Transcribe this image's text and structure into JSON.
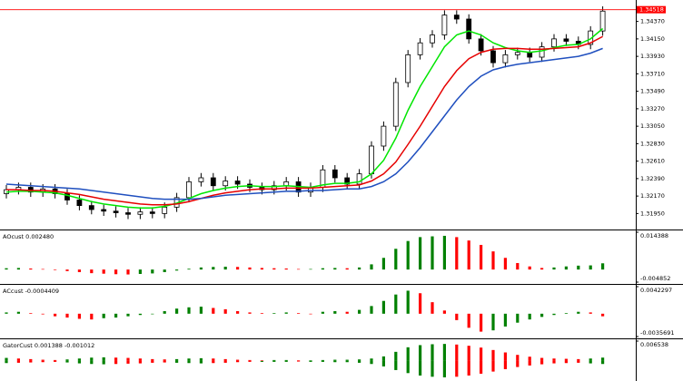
{
  "chart_data": [
    {
      "type": "candlestick",
      "open": [
        1.322,
        1.3225,
        1.3228,
        1.3222,
        1.3226,
        1.322,
        1.3212,
        1.3205,
        1.32,
        1.3198,
        1.3196,
        1.3194,
        1.3197,
        1.3195,
        1.3203,
        1.3215,
        1.3235,
        1.324,
        1.323,
        1.3236,
        1.3232,
        1.3228,
        1.3225,
        1.323,
        1.3235,
        1.3222,
        1.3228,
        1.325,
        1.324,
        1.3232,
        1.3245,
        1.328,
        1.3305,
        1.336,
        1.3395,
        1.341,
        1.342,
        1.3445,
        1.344,
        1.3415,
        1.34,
        1.3385,
        1.3395,
        1.3398,
        1.3392,
        1.3405,
        1.3415,
        1.3412,
        1.3408,
        1.3425
      ],
      "high": [
        1.3231,
        1.3234,
        1.3234,
        1.3232,
        1.3232,
        1.3226,
        1.3218,
        1.3211,
        1.3206,
        1.3204,
        1.3202,
        1.3203,
        1.3203,
        1.3209,
        1.3221,
        1.3241,
        1.3246,
        1.3246,
        1.3242,
        1.3242,
        1.3238,
        1.3234,
        1.3236,
        1.3241,
        1.3241,
        1.3234,
        1.3256,
        1.3256,
        1.3246,
        1.3251,
        1.3286,
        1.3311,
        1.3366,
        1.3401,
        1.3416,
        1.3426,
        1.3451,
        1.3451,
        1.3446,
        1.3421,
        1.3406,
        1.3401,
        1.3404,
        1.3404,
        1.3411,
        1.3421,
        1.3421,
        1.3418,
        1.3431,
        1.3456
      ],
      "low": [
        1.3214,
        1.3219,
        1.3216,
        1.3216,
        1.3214,
        1.3206,
        1.3199,
        1.3194,
        1.3192,
        1.319,
        1.3188,
        1.3188,
        1.3189,
        1.3189,
        1.3197,
        1.3209,
        1.3229,
        1.3224,
        1.3224,
        1.3226,
        1.3222,
        1.3219,
        1.3219,
        1.3224,
        1.3216,
        1.3216,
        1.3222,
        1.3234,
        1.3226,
        1.3226,
        1.3239,
        1.3274,
        1.3299,
        1.3354,
        1.3389,
        1.3404,
        1.3414,
        1.3434,
        1.3409,
        1.3394,
        1.3379,
        1.3379,
        1.3389,
        1.3386,
        1.3386,
        1.3399,
        1.3406,
        1.3402,
        1.3402,
        1.3419
      ],
      "close": [
        1.3225,
        1.3228,
        1.3222,
        1.3226,
        1.322,
        1.3212,
        1.3205,
        1.32,
        1.3198,
        1.3196,
        1.3194,
        1.3197,
        1.3195,
        1.3203,
        1.3215,
        1.3235,
        1.324,
        1.323,
        1.3236,
        1.3232,
        1.3228,
        1.3225,
        1.323,
        1.3235,
        1.3222,
        1.3228,
        1.325,
        1.324,
        1.3232,
        1.3245,
        1.328,
        1.3305,
        1.336,
        1.3395,
        1.341,
        1.342,
        1.3445,
        1.344,
        1.3415,
        1.34,
        1.3385,
        1.3395,
        1.3398,
        1.3392,
        1.3405,
        1.3415,
        1.3412,
        1.3408,
        1.3425,
        1.345
      ],
      "series": [
        {
          "color": "#00e600",
          "values": [
            1.3222,
            1.3223,
            1.3223,
            1.3222,
            1.3221,
            1.3218,
            1.3214,
            1.321,
            1.3207,
            1.3205,
            1.3203,
            1.3202,
            1.3202,
            1.3204,
            1.3208,
            1.3214,
            1.322,
            1.3224,
            1.3227,
            1.3229,
            1.323,
            1.3229,
            1.3229,
            1.323,
            1.3229,
            1.3228,
            1.3231,
            1.3233,
            1.3233,
            1.3235,
            1.3245,
            1.3262,
            1.329,
            1.3325,
            1.3355,
            1.338,
            1.3405,
            1.342,
            1.3425,
            1.342,
            1.341,
            1.3404,
            1.34,
            1.3398,
            1.34,
            1.3404,
            1.3407,
            1.3408,
            1.3415,
            1.3428
          ]
        },
        {
          "color": "#e60000",
          "values": [
            1.3225,
            1.3225,
            1.3224,
            1.3224,
            1.3223,
            1.3221,
            1.3219,
            1.3216,
            1.3213,
            1.3211,
            1.3209,
            1.3207,
            1.3206,
            1.3206,
            1.3207,
            1.321,
            1.3214,
            1.3218,
            1.3221,
            1.3223,
            1.3225,
            1.3226,
            1.3226,
            1.3227,
            1.3227,
            1.3227,
            1.3228,
            1.3229,
            1.323,
            1.3231,
            1.3236,
            1.3245,
            1.326,
            1.3282,
            1.3305,
            1.333,
            1.3355,
            1.3375,
            1.339,
            1.3398,
            1.3402,
            1.3403,
            1.3403,
            1.3402,
            1.3402,
            1.3403,
            1.3404,
            1.3405,
            1.341,
            1.3418
          ]
        },
        {
          "color": "#1f4fbf",
          "values": [
            1.3232,
            1.3231,
            1.323,
            1.3229,
            1.3228,
            1.3227,
            1.3226,
            1.3224,
            1.3222,
            1.322,
            1.3218,
            1.3216,
            1.3214,
            1.3213,
            1.3213,
            1.3213,
            1.3214,
            1.3216,
            1.3218,
            1.3219,
            1.322,
            1.3221,
            1.3222,
            1.3223,
            1.3223,
            1.3224,
            1.3224,
            1.3225,
            1.3226,
            1.3226,
            1.3229,
            1.3235,
            1.3245,
            1.326,
            1.3278,
            1.3298,
            1.3318,
            1.3338,
            1.3355,
            1.3368,
            1.3376,
            1.338,
            1.3383,
            1.3385,
            1.3387,
            1.3389,
            1.3391,
            1.3393,
            1.3397,
            1.3403
          ]
        }
      ],
      "current_price": 1.34518,
      "current_price_color": "#ff0000",
      "ylim": [
        1.3176,
        1.3464
      ],
      "yticks": [
        {
          "value": 1.3437,
          "label": "1.34370"
        },
        {
          "value": 1.3415,
          "label": "1.34150"
        },
        {
          "value": 1.3393,
          "label": "1.33930"
        },
        {
          "value": 1.3371,
          "label": "1.33710"
        },
        {
          "value": 1.3349,
          "label": "1.33490"
        },
        {
          "value": 1.3327,
          "label": "1.33270"
        },
        {
          "value": 1.3305,
          "label": "1.33050"
        },
        {
          "value": 1.3283,
          "label": "1.32830"
        },
        {
          "value": 1.3261,
          "label": "1.32610"
        },
        {
          "value": 1.3239,
          "label": "1.32390"
        },
        {
          "value": 1.3217,
          "label": "1.32170"
        },
        {
          "value": 1.3195,
          "label": "1.31950"
        }
      ]
    },
    {
      "type": "bar",
      "title": "AOcust 0.002480",
      "up_color": "#008000",
      "down_color": "#ff0000",
      "series": [
        {
          "values": [
            0.0005,
            0.0006,
            0.0004,
            0.0002,
            -0.0002,
            -0.0006,
            -0.001,
            -0.0014,
            -0.0016,
            -0.0018,
            -0.0019,
            -0.0017,
            -0.0015,
            -0.001,
            -0.0004,
            0.0003,
            0.0008,
            0.001,
            0.0011,
            0.001,
            0.0008,
            0.0006,
            0.0005,
            0.0004,
            0.0002,
            0.0002,
            0.0005,
            0.0006,
            0.0005,
            0.0008,
            0.002,
            0.0045,
            0.008,
            0.011,
            0.0125,
            0.0128,
            0.013,
            0.0125,
            0.0112,
            0.0095,
            0.007,
            0.0045,
            0.0025,
            0.0012,
            0.0006,
            0.0008,
            0.0012,
            0.0015,
            0.0016,
            0.0024
          ]
        }
      ],
      "ylim": [
        -0.004852,
        0.014388
      ],
      "yticks": [
        0.014388,
        -0.004852
      ]
    },
    {
      "type": "bar",
      "title": "ACcust -0.0004409",
      "up_color": "#008000",
      "down_color": "#ff0000",
      "series": [
        {
          "values": [
            0.0002,
            0.0003,
            0.0001,
            -0.0001,
            -0.0004,
            -0.0006,
            -0.0008,
            -0.0009,
            -0.0007,
            -0.0006,
            -0.0004,
            -0.0002,
            0.0,
            0.0004,
            0.0008,
            0.001,
            0.0011,
            0.0009,
            0.0007,
            0.0004,
            0.0002,
            0.0001,
            0.0001,
            0.0002,
            0.0001,
            0.0,
            0.0003,
            0.0004,
            0.0003,
            0.0006,
            0.0012,
            0.002,
            0.003,
            0.0036,
            0.0032,
            0.0018,
            0.0005,
            -0.001,
            -0.0022,
            -0.0028,
            -0.0026,
            -0.002,
            -0.0014,
            -0.0009,
            -0.0005,
            -0.0002,
            0.0001,
            0.0003,
            0.0002,
            -0.0004
          ]
        }
      ],
      "ylim": [
        -0.0035691,
        0.0042297
      ],
      "yticks": [
        0.0042297,
        -0.0035691
      ]
    },
    {
      "type": "bar",
      "title": "GatorCust 0.001388 -0.001012",
      "up_color": "#008000",
      "down_color": "#ff0000",
      "series": [
        {
          "values": [
            0.001,
            0.0008,
            0.0006,
            0.0004,
            0.0003,
            0.0005,
            0.0008,
            0.0011,
            0.0012,
            0.0011,
            0.001,
            0.0008,
            0.0006,
            0.0005,
            0.0006,
            0.0008,
            0.0009,
            0.0008,
            0.0006,
            0.0004,
            0.0003,
            0.0002,
            0.0003,
            0.0003,
            0.0002,
            0.0002,
            0.0003,
            0.0004,
            0.0004,
            0.0005,
            0.0008,
            0.0015,
            0.003,
            0.0045,
            0.0052,
            0.0055,
            0.0056,
            0.0054,
            0.005,
            0.0044,
            0.0036,
            0.0028,
            0.002,
            0.0014,
            0.001,
            0.0008,
            0.0007,
            0.0006,
            0.0008,
            0.0011
          ]
        },
        {
          "values": [
            -0.0007,
            -0.0006,
            -0.0005,
            -0.0004,
            -0.0003,
            -0.0005,
            -0.0008,
            -0.001,
            -0.0011,
            -0.001,
            -0.0009,
            -0.0008,
            -0.0006,
            -0.0005,
            -0.0006,
            -0.0007,
            -0.0008,
            -0.0007,
            -0.0006,
            -0.0004,
            -0.0003,
            -0.0003,
            -0.0003,
            -0.0003,
            -0.0002,
            -0.0003,
            -0.0003,
            -0.0004,
            -0.0004,
            -0.0006,
            -0.001,
            -0.0018,
            -0.003,
            -0.004,
            -0.0048,
            -0.0052,
            -0.0054,
            -0.0052,
            -0.0048,
            -0.0042,
            -0.0035,
            -0.0027,
            -0.002,
            -0.0015,
            -0.0011,
            -0.0008,
            -0.0007,
            -0.0006,
            -0.0008,
            -0.001
          ]
        }
      ],
      "ylim": [
        -0.0066,
        0.006538
      ],
      "yticks": [
        0.006538
      ]
    }
  ]
}
